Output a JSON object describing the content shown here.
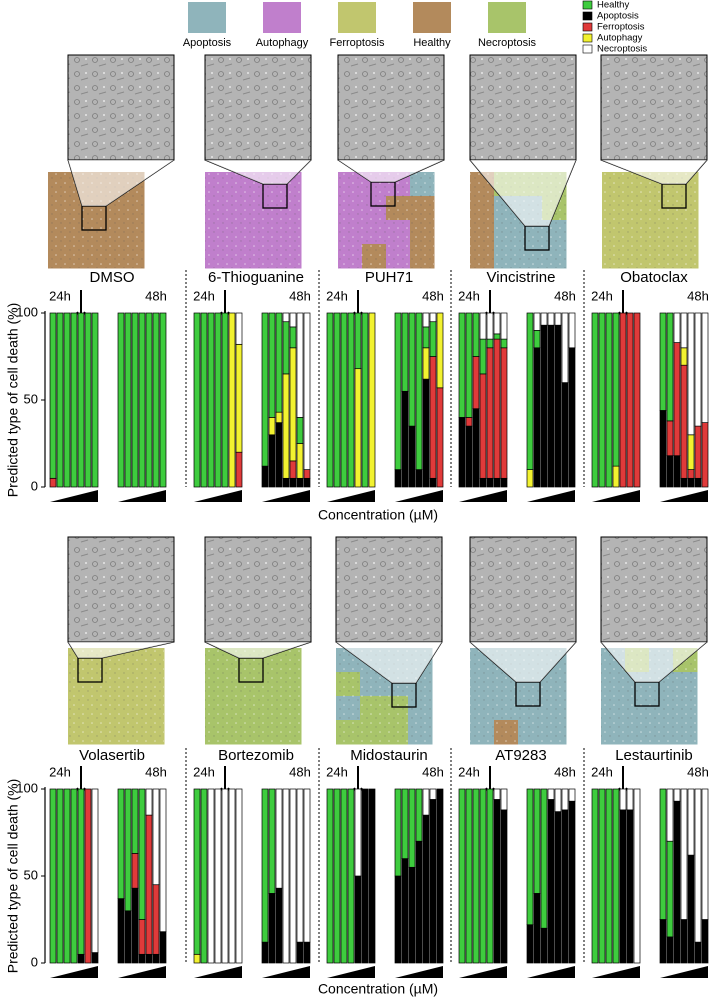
{
  "chart_data": {
    "type": "bar",
    "stacked": true,
    "ylabel": "Predicted type of cell death (%)",
    "xlabel": "Concentration (µM)",
    "ylim": [
      0,
      100
    ],
    "yticks": [
      0,
      50,
      100
    ],
    "times": [
      "24h",
      "48h"
    ],
    "panels": [
      "DMSO",
      "6-Thioguanine",
      "PUH71",
      "Vincistrine",
      "Obatoclax",
      "Volasertib",
      "Bortezomib",
      "Midostaurin",
      "AT9283",
      "Lestaurtinib"
    ],
    "series": [
      {
        "name": "Healthy",
        "color": "#3ecc3e",
        "values": [
          95,
          100,
          100,
          100,
          100,
          100,
          100,
          100,
          100,
          100,
          100,
          100,
          100,
          100,
          100,
          100,
          100,
          100,
          100,
          0,
          0,
          88,
          60,
          57,
          30,
          12,
          15,
          0,
          100,
          100,
          100,
          100,
          32,
          100,
          0,
          90,
          45,
          65,
          90,
          12,
          20,
          0,
          60,
          60,
          25,
          20,
          5,
          3,
          5,
          90,
          10,
          0,
          0,
          0,
          0,
          0,
          100,
          100,
          100,
          88,
          0,
          0,
          0,
          56,
          62,
          0,
          0,
          0,
          0,
          0,
          100,
          100,
          100,
          100,
          95,
          0,
          0,
          63,
          70,
          37,
          75,
          0,
          0,
          0,
          95,
          100,
          0,
          0,
          0,
          0,
          0,
          88,
          60,
          0,
          0,
          0,
          0,
          0,
          100,
          100,
          100,
          100,
          0,
          0,
          0,
          50,
          40,
          45,
          30,
          0,
          0,
          0,
          100,
          100,
          100,
          100,
          100,
          0,
          0,
          78,
          60,
          80,
          0,
          0,
          0,
          0,
          100,
          100,
          100,
          100,
          0,
          0,
          0,
          75,
          55,
          0,
          0,
          0,
          0,
          0
        ]
      },
      {
        "name": "Apoptosis",
        "color": "#000000",
        "values": [
          0,
          0,
          0,
          0,
          0,
          0,
          0,
          0,
          0,
          0,
          0,
          0,
          0,
          0,
          0,
          0,
          0,
          0,
          0,
          0,
          0,
          12,
          30,
          37,
          5,
          5,
          5,
          5,
          0,
          0,
          0,
          0,
          0,
          0,
          0,
          10,
          55,
          35,
          10,
          62,
          5,
          0,
          40,
          35,
          45,
          5,
          5,
          5,
          5,
          0,
          80,
          93,
          93,
          93,
          60,
          80,
          0,
          0,
          0,
          0,
          0,
          0,
          0,
          44,
          18,
          18,
          5,
          5,
          5,
          0,
          0,
          0,
          0,
          0,
          5,
          0,
          6,
          37,
          30,
          43,
          5,
          5,
          5,
          18,
          0,
          0,
          0,
          0,
          0,
          0,
          0,
          12,
          40,
          43,
          0,
          0,
          12,
          12,
          0,
          0,
          0,
          0,
          50,
          100,
          100,
          50,
          60,
          55,
          70,
          85,
          94,
          100,
          0,
          0,
          0,
          0,
          0,
          94,
          88,
          22,
          40,
          20,
          94,
          87,
          88,
          93,
          0,
          0,
          0,
          0,
          88,
          88,
          0,
          25,
          15,
          93,
          25,
          62,
          12,
          25
        ]
      },
      {
        "name": "Ferroptosis",
        "color": "#e03a3a",
        "values": [
          5,
          0,
          0,
          0,
          0,
          0,
          0,
          0,
          0,
          0,
          0,
          0,
          0,
          0,
          0,
          0,
          0,
          0,
          0,
          0,
          20,
          0,
          0,
          0,
          0,
          10,
          0,
          5,
          0,
          0,
          0,
          0,
          0,
          0,
          0,
          0,
          0,
          0,
          0,
          0,
          70,
          57,
          0,
          5,
          30,
          60,
          75,
          80,
          75,
          0,
          0,
          0,
          0,
          0,
          0,
          0,
          0,
          0,
          0,
          0,
          100,
          100,
          100,
          0,
          20,
          65,
          65,
          5,
          30,
          37,
          0,
          0,
          0,
          0,
          0,
          100,
          0,
          0,
          0,
          20,
          20,
          80,
          40,
          0,
          0,
          0,
          0,
          0,
          0,
          0,
          0,
          0,
          0,
          0,
          0,
          0,
          0,
          0,
          0,
          0,
          0,
          0,
          0,
          0,
          0,
          0,
          0,
          0,
          0,
          0,
          0,
          0,
          0,
          0,
          0,
          0,
          0,
          0,
          0,
          0,
          0,
          0,
          0,
          0,
          0,
          0,
          0,
          0,
          0,
          0,
          0,
          0,
          0,
          0,
          0,
          0,
          0,
          0,
          0,
          0
        ]
      },
      {
        "name": "Autophagy",
        "color": "#f2f230",
        "values": [
          0,
          0,
          0,
          0,
          0,
          0,
          0,
          0,
          0,
          0,
          0,
          0,
          0,
          0,
          0,
          0,
          0,
          0,
          0,
          100,
          62,
          0,
          10,
          6,
          60,
          65,
          20,
          0,
          0,
          0,
          0,
          0,
          68,
          0,
          100,
          0,
          0,
          0,
          0,
          18,
          0,
          43,
          0,
          0,
          0,
          0,
          0,
          0,
          0,
          10,
          0,
          0,
          0,
          0,
          0,
          0,
          0,
          0,
          0,
          12,
          0,
          0,
          0,
          0,
          0,
          0,
          10,
          20,
          0,
          0,
          0,
          0,
          0,
          0,
          0,
          0,
          0,
          0,
          0,
          0,
          0,
          0,
          0,
          0,
          5,
          0,
          0,
          0,
          0,
          0,
          0,
          0,
          0,
          0,
          0,
          0,
          0,
          0,
          0,
          0,
          0,
          0,
          0,
          0,
          0,
          0,
          0,
          0,
          0,
          0,
          0,
          0,
          0,
          0,
          0,
          0,
          0,
          0,
          0,
          0,
          0,
          0,
          0,
          0,
          0,
          0,
          0,
          0,
          0,
          0,
          0,
          0,
          0,
          0,
          0,
          0,
          0,
          0,
          0,
          0
        ]
      },
      {
        "name": "Necroptosis",
        "color": "#ffffff",
        "values": [
          0,
          0,
          0,
          0,
          0,
          0,
          0,
          0,
          0,
          0,
          0,
          0,
          0,
          0,
          0,
          0,
          0,
          0,
          0,
          0,
          18,
          0,
          0,
          0,
          5,
          8,
          60,
          90,
          0,
          0,
          0,
          0,
          0,
          0,
          0,
          0,
          0,
          0,
          0,
          8,
          5,
          0,
          0,
          0,
          0,
          15,
          15,
          12,
          15,
          0,
          10,
          7,
          7,
          7,
          40,
          20,
          0,
          0,
          0,
          0,
          0,
          0,
          0,
          0,
          0,
          17,
          20,
          70,
          65,
          63,
          0,
          0,
          0,
          0,
          0,
          0,
          94,
          0,
          0,
          0,
          0,
          15,
          55,
          82,
          0,
          0,
          100,
          100,
          100,
          100,
          100,
          0,
          0,
          57,
          100,
          100,
          88,
          88,
          0,
          0,
          0,
          0,
          50,
          0,
          0,
          0,
          0,
          0,
          0,
          15,
          6,
          0,
          0,
          0,
          0,
          0,
          0,
          6,
          12,
          0,
          0,
          0,
          6,
          13,
          12,
          7,
          0,
          0,
          0,
          0,
          12,
          12,
          100,
          0,
          30,
          7,
          75,
          38,
          88,
          75
        ]
      }
    ],
    "map_legend": [
      {
        "name": "Apoptosis",
        "color": "#8fb4bb"
      },
      {
        "name": "Autophagy",
        "color": "#c07fcc"
      },
      {
        "name": "Ferroptosis",
        "color": "#c1c66e"
      },
      {
        "name": "Healthy",
        "color": "#b38a5c"
      },
      {
        "name": "Necroptosis",
        "color": "#a8c46a"
      }
    ]
  }
}
